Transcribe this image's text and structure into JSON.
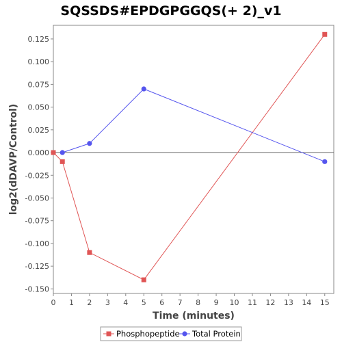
{
  "chart_data": {
    "type": "line",
    "title": "SQSSDS#EPDGPGGQS(+ 2)_v1",
    "xlabel": "Time (minutes)",
    "ylabel": "log2(dDAVP/Control)",
    "xlim": [
      0,
      15.5
    ],
    "ylim": [
      -0.155,
      0.14
    ],
    "xticks": [
      "0",
      "1",
      "2",
      "3",
      "4",
      "5",
      "6",
      "7",
      "8",
      "9",
      "10",
      "11",
      "12",
      "13",
      "14",
      "15"
    ],
    "yticks": [
      "0.125",
      "0.100",
      "0.075",
      "0.050",
      "0.025",
      "0.000",
      "-0.025",
      "-0.050",
      "-0.075",
      "-0.100",
      "-0.125",
      "-0.150"
    ],
    "legend_position": "bottom",
    "zero_line": true,
    "series": [
      {
        "name": "Phosphopeptide",
        "color": "#e05555",
        "marker": "square",
        "x": [
          0,
          0.5,
          2,
          5,
          15
        ],
        "y": [
          0.0,
          -0.01,
          -0.11,
          -0.14,
          0.13
        ]
      },
      {
        "name": "Total Protein",
        "color": "#5555ee",
        "marker": "circle",
        "x": [
          0.5,
          2,
          5,
          15
        ],
        "y": [
          0.0,
          0.01,
          0.07,
          -0.01
        ]
      }
    ]
  }
}
